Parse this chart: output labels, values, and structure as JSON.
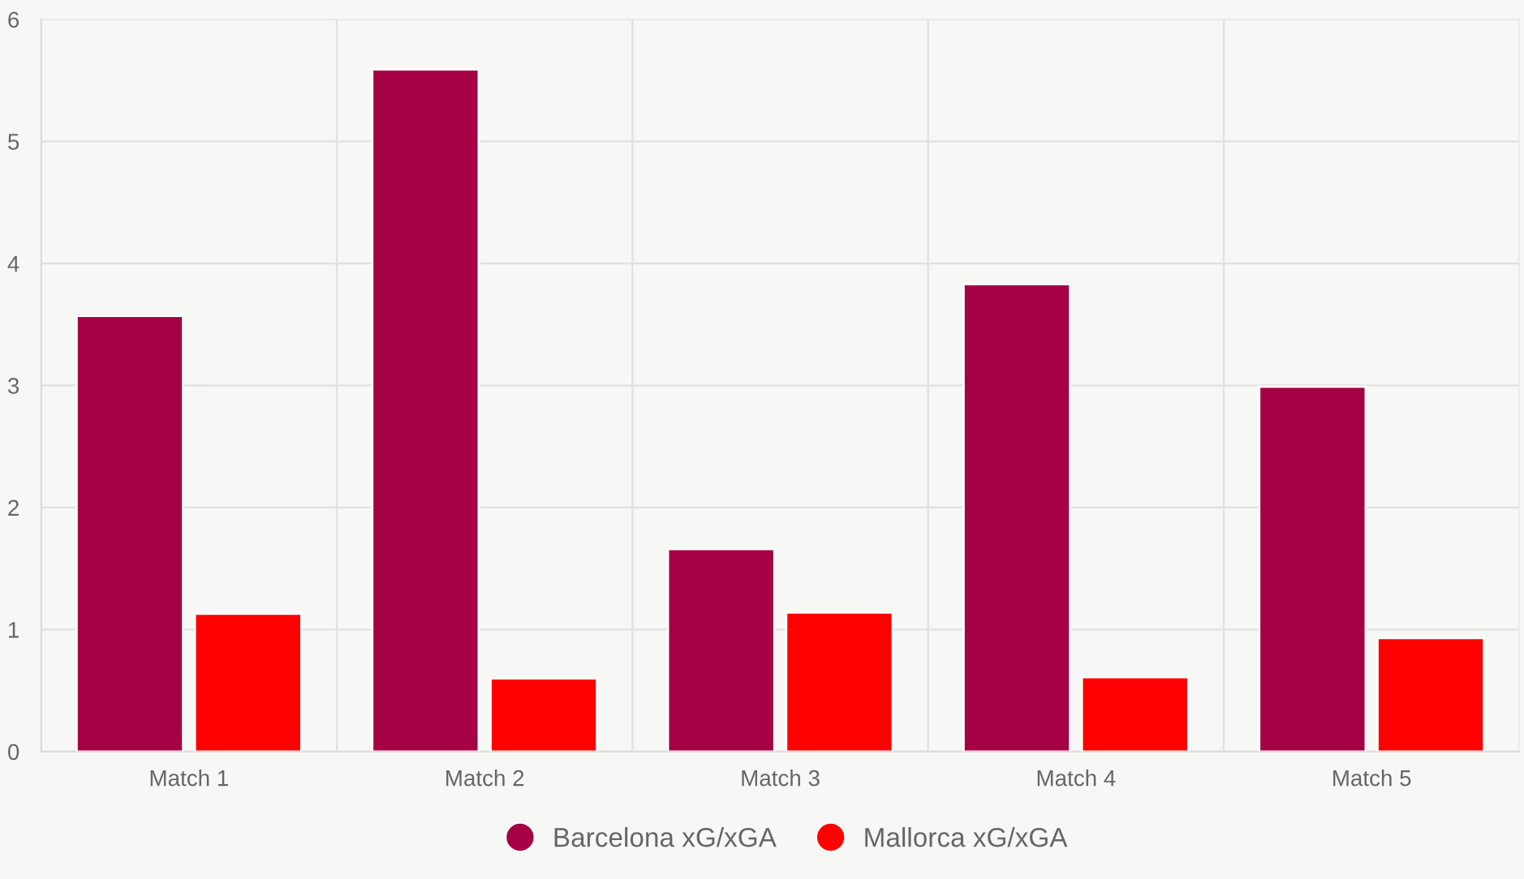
{
  "chart_data": {
    "type": "bar",
    "categories": [
      "Match 1",
      "Match 2",
      "Match 3",
      "Match 4",
      "Match 5"
    ],
    "series": [
      {
        "name": "Barcelona xG/xGA",
        "color": "#a50044",
        "values": [
          3.57,
          5.59,
          1.66,
          3.83,
          2.99
        ]
      },
      {
        "name": "Mallorca xG/xGA",
        "color": "#ff0000",
        "values": [
          1.13,
          0.6,
          1.14,
          0.61,
          0.93
        ]
      }
    ],
    "ylim": [
      0,
      6
    ],
    "yticks": [
      0,
      1,
      2,
      3,
      4,
      5,
      6
    ],
    "grid": true,
    "legend": "bottom"
  }
}
